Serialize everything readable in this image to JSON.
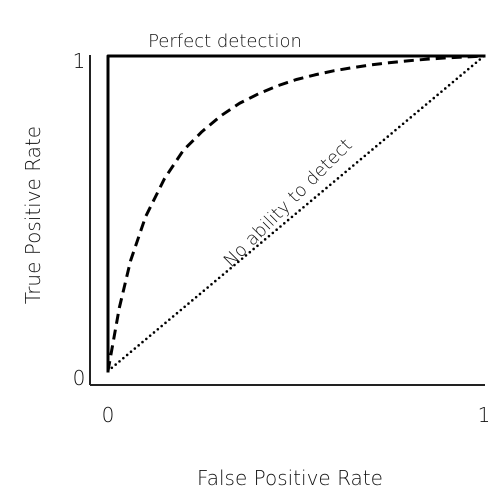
{
  "chart_data": {
    "type": "line",
    "title": "",
    "xlabel": "False Positive Rate",
    "ylabel": "True Positive Rate",
    "xlim": [
      0,
      1
    ],
    "ylim": [
      0,
      1
    ],
    "grid": false,
    "x_ticks": [
      {
        "value": 0,
        "label": "0"
      },
      {
        "value": 1,
        "label": "1"
      }
    ],
    "y_ticks": [
      {
        "value": 0,
        "label": "0"
      },
      {
        "value": 1,
        "label": "1"
      }
    ],
    "series": [
      {
        "style": "solid",
        "color": "#000000",
        "x": [
          0,
          0,
          1
        ],
        "y": [
          0,
          1,
          1
        ]
      },
      {
        "style": "dashed",
        "color": "#000000",
        "x": [
          0,
          0.03,
          0.06,
          0.1,
          0.15,
          0.2,
          0.25,
          0.3,
          0.35,
          0.4,
          0.45,
          0.5,
          0.55,
          0.6,
          0.65,
          0.7,
          0.75,
          0.8,
          0.85,
          0.9,
          0.95,
          1.0
        ],
        "y": [
          0,
          0.2,
          0.35,
          0.49,
          0.61,
          0.7,
          0.76,
          0.81,
          0.85,
          0.88,
          0.905,
          0.925,
          0.94,
          0.953,
          0.963,
          0.972,
          0.979,
          0.985,
          0.99,
          0.994,
          0.997,
          1.0
        ]
      },
      {
        "style": "dotted",
        "color": "#000000",
        "x": [
          0,
          1
        ],
        "y": [
          0,
          1
        ]
      }
    ],
    "annotations": [
      {
        "text": "Perfect detection",
        "attached_to": "solid line, top edge"
      },
      {
        "text": "No ability to detect",
        "attached_to": "dotted diagonal line"
      }
    ]
  }
}
